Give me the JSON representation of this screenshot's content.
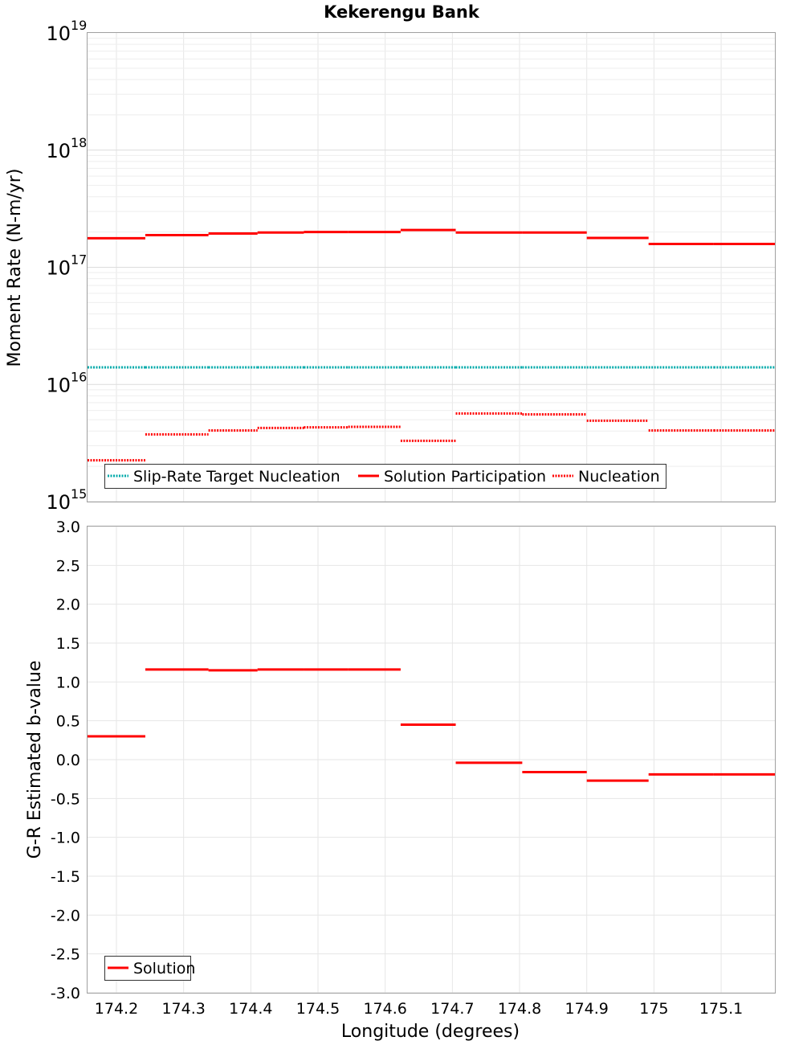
{
  "chart_data": {
    "title": "Kekerengu Bank",
    "xlabel": "Longitude (degrees)",
    "xlim": [
      174.157,
      175.18
    ],
    "x_ticks": [
      174.2,
      174.3,
      174.4,
      174.5,
      174.6,
      174.7,
      174.8,
      174.9,
      175.0,
      175.1
    ],
    "x_tick_labels": [
      "174.2",
      "174.3",
      "174.4",
      "174.5",
      "174.6",
      "174.7",
      "174.8",
      "174.9",
      "175",
      "175.1"
    ],
    "x_edges": [
      174.157,
      174.243,
      174.337,
      174.41,
      174.479,
      174.545,
      174.623,
      174.705,
      174.804,
      174.9,
      174.992,
      175.089,
      175.18
    ],
    "top": {
      "type": "line",
      "scale": "log",
      "ylabel": "Moment Rate (N-m/yr)",
      "ylim": [
        1000000000000000.0,
        1e+19
      ],
      "y_ticks": [
        {
          "base": "10",
          "exp": "15",
          "value": 1000000000000000.0
        },
        {
          "base": "10",
          "exp": "16",
          "value": 1e+16
        },
        {
          "base": "10",
          "exp": "17",
          "value": 1e+17
        },
        {
          "base": "10",
          "exp": "18",
          "value": 1e+18
        },
        {
          "base": "10",
          "exp": "19",
          "value": 1e+19
        }
      ],
      "series": [
        {
          "name": "Slip-Rate Target Nucleation",
          "color": "#00aaaa",
          "style": "dotted",
          "values": [
            1.4e+16,
            1.4e+16,
            1.4e+16,
            1.4e+16,
            1.4e+16,
            1.4e+16,
            1.4e+16,
            1.4e+16,
            1.4e+16,
            1.4e+16,
            1.4e+16,
            1.4e+16
          ]
        },
        {
          "name": "Solution Participation",
          "color": "#ff0000",
          "style": "solid",
          "values": [
            1.77e+17,
            1.88e+17,
            1.94e+17,
            1.98e+17,
            2e+17,
            2e+17,
            2.08e+17,
            1.98e+17,
            1.98e+17,
            1.78e+17,
            1.58e+17,
            1.58e+17
          ]
        },
        {
          "name": "Nucleation",
          "color": "#ff0000",
          "style": "dotted",
          "values": [
            2250000000000000.0,
            3750000000000000.0,
            4050000000000000.0,
            4250000000000000.0,
            4300000000000000.0,
            4350000000000000.0,
            3300000000000000.0,
            5650000000000000.0,
            5550000000000000.0,
            4900000000000000.0,
            4050000000000000.0,
            4050000000000000.0
          ]
        }
      ]
    },
    "bottom": {
      "type": "line",
      "ylabel": "G-R Estimated b-value",
      "ylim": [
        -3.0,
        3.0
      ],
      "y_ticks": [
        3.0,
        2.5,
        2.0,
        1.5,
        1.0,
        0.5,
        0.0,
        -0.5,
        -1.0,
        -1.5,
        -2.0,
        -2.5,
        -3.0
      ],
      "y_tick_labels": [
        "3.0",
        "2.5",
        "2.0",
        "1.5",
        "1.0",
        "0.5",
        "0.0",
        "-0.5",
        "-1.0",
        "-1.5",
        "-2.0",
        "-2.5",
        "-3.0"
      ],
      "series": [
        {
          "name": "Solution",
          "color": "#ff0000",
          "style": "solid",
          "values": [
            0.3,
            1.16,
            1.15,
            1.16,
            1.16,
            1.16,
            0.45,
            -0.04,
            -0.16,
            -0.27,
            -0.19,
            -0.19
          ]
        }
      ]
    }
  }
}
